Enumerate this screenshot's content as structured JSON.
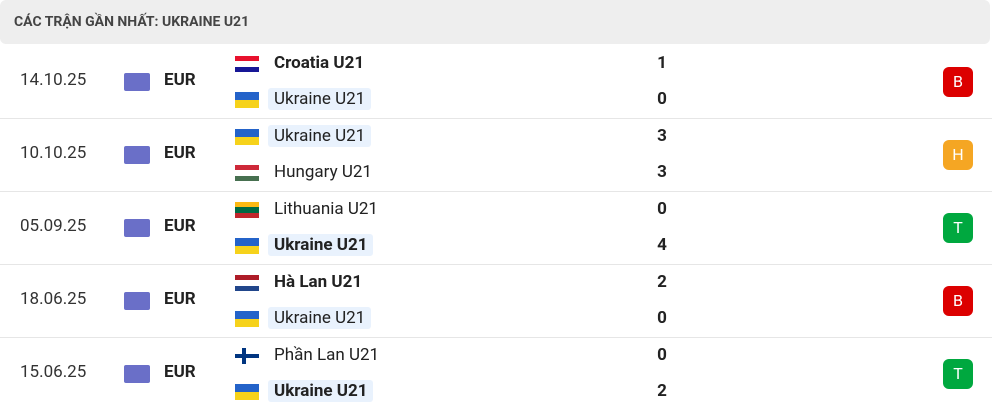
{
  "header": {
    "title": "CÁC TRẬN GẦN NHẤT: UKRAINE U21"
  },
  "matches": [
    {
      "date": "14.10.25",
      "competition": "EUR",
      "home": {
        "name": "Croatia U21",
        "score": 1,
        "bold": true,
        "highlight": false,
        "flag": {
          "stripes": [
            "#e8112d",
            "#ffffff",
            "#171796"
          ]
        }
      },
      "away": {
        "name": "Ukraine U21",
        "score": 0,
        "bold": false,
        "highlight": true,
        "flag": {
          "stripes": [
            "#2463c9",
            "#f6d21b"
          ]
        }
      },
      "result": "B",
      "result_color": "#dc0000"
    },
    {
      "date": "10.10.25",
      "competition": "EUR",
      "home": {
        "name": "Ukraine U21",
        "score": 3,
        "bold": false,
        "highlight": true,
        "flag": {
          "stripes": [
            "#2463c9",
            "#f6d21b"
          ]
        }
      },
      "away": {
        "name": "Hungary U21",
        "score": 3,
        "bold": false,
        "highlight": false,
        "flag": {
          "stripes": [
            "#ce2939",
            "#ffffff",
            "#477050"
          ]
        }
      },
      "result": "H",
      "result_color": "#f5a623"
    },
    {
      "date": "05.09.25",
      "competition": "EUR",
      "home": {
        "name": "Lithuania U21",
        "score": 0,
        "bold": false,
        "highlight": false,
        "flag": {
          "stripes": [
            "#fdb913",
            "#006a44",
            "#c1272d"
          ]
        }
      },
      "away": {
        "name": "Ukraine U21",
        "score": 4,
        "bold": true,
        "highlight": true,
        "flag": {
          "stripes": [
            "#2463c9",
            "#f6d21b"
          ]
        }
      },
      "result": "T",
      "result_color": "#00a83f"
    },
    {
      "date": "18.06.25",
      "competition": "EUR",
      "home": {
        "name": "Hà Lan U21",
        "score": 2,
        "bold": true,
        "highlight": false,
        "flag": {
          "stripes": [
            "#ae1c28",
            "#ffffff",
            "#21468b"
          ]
        }
      },
      "away": {
        "name": "Ukraine U21",
        "score": 0,
        "bold": false,
        "highlight": true,
        "flag": {
          "stripes": [
            "#2463c9",
            "#f6d21b"
          ]
        }
      },
      "result": "B",
      "result_color": "#dc0000"
    },
    {
      "date": "15.06.25",
      "competition": "EUR",
      "home": {
        "name": "Phần Lan U21",
        "score": 0,
        "bold": false,
        "highlight": false,
        "flag": {
          "stripes": [
            "#ffffff"
          ],
          "cross": "#003580"
        }
      },
      "away": {
        "name": "Ukraine U21",
        "score": 2,
        "bold": true,
        "highlight": true,
        "flag": {
          "stripes": [
            "#2463c9",
            "#f6d21b"
          ]
        }
      },
      "result": "T",
      "result_color": "#00a83f"
    }
  ]
}
